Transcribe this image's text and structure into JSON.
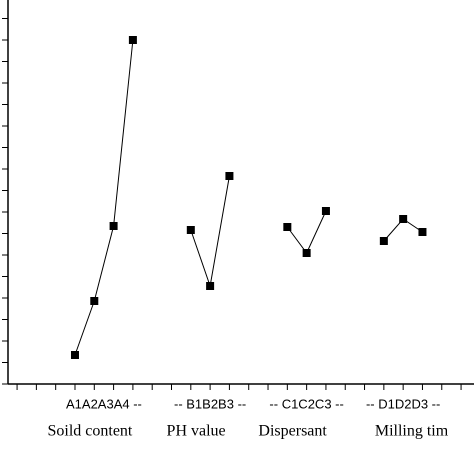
{
  "chart_data": {
    "type": "line",
    "xlim": [
      -3.47,
      20.67
    ],
    "ylim": [
      0,
      384
    ],
    "xticks": [
      -3,
      -2,
      -1,
      0,
      1,
      2,
      3,
      4,
      5,
      6,
      7,
      8,
      9,
      10,
      11,
      12,
      13,
      14,
      15,
      16,
      17,
      18,
      19,
      20
    ],
    "yticks": [
      0,
      21.5,
      43,
      64.5,
      86,
      107.5,
      129,
      150.5,
      172,
      193.5,
      215,
      236.5,
      258,
      279.5,
      301,
      322.5,
      344,
      365.5
    ],
    "color": "#000000",
    "series": [
      {
        "name": "Soild content",
        "label": "A1A2A3A4 --",
        "x": [
          0,
          1,
          2,
          3
        ],
        "values": [
          29,
          83,
          158,
          344
        ]
      },
      {
        "name": "PH value",
        "label": "-- B1B2B3 --",
        "x": [
          6,
          7,
          8
        ],
        "values": [
          154,
          98,
          208
        ]
      },
      {
        "name": "Dispersant",
        "label": "-- C1C2C3 --",
        "x": [
          11,
          12,
          13
        ],
        "values": [
          157,
          131,
          173
        ]
      },
      {
        "name": "Milling tim",
        "label": "-- D1D2D3 --",
        "x": [
          16,
          17,
          18
        ],
        "values": [
          143,
          165,
          152
        ]
      }
    ]
  }
}
